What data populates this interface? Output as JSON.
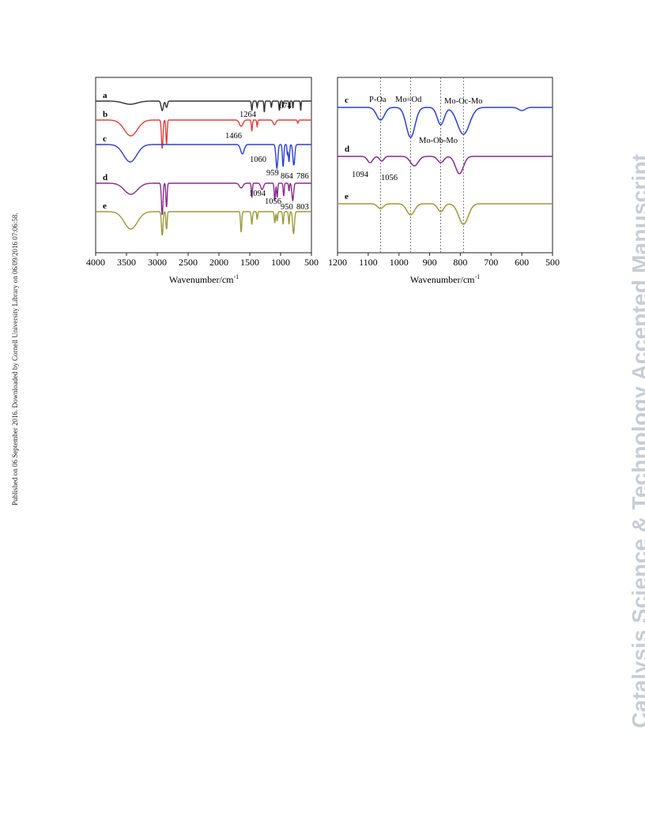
{
  "side_note_left": "Published on 06 September 2016. Downloaded by Cornell University Library on 06/09/2016 07:06:58.",
  "watermark_right": "Catalysis Science & Technology Accepted Manuscript",
  "colors": {
    "a": "#333333",
    "b": "#e0403a",
    "c": "#2b3fd6",
    "d": "#8a2a8f",
    "e": "#9a9a3a"
  },
  "chart_data": [
    {
      "type": "line",
      "xlabel": "Wavenumber/cm",
      "xlabel_superscript": "-1",
      "xlim": [
        4000,
        500
      ],
      "xticks": [
        "4000",
        "3500",
        "3000",
        "2500",
        "2000",
        "1500",
        "1000",
        "500"
      ],
      "series": [
        {
          "name": "a"
        },
        {
          "name": "b"
        },
        {
          "name": "c"
        },
        {
          "name": "d"
        },
        {
          "name": "e"
        }
      ],
      "annotations": [
        {
          "text": "1264",
          "x": 1264,
          "series": "a"
        },
        {
          "text": "674",
          "x": 674,
          "series": "a"
        },
        {
          "text": "1466",
          "x": 1466,
          "series": "b"
        },
        {
          "text": "1060",
          "x": 1060,
          "series": "c"
        },
        {
          "text": "959",
          "x": 959,
          "series": "c"
        },
        {
          "text": "864",
          "x": 864,
          "series": "c"
        },
        {
          "text": "786",
          "x": 786,
          "series": "c"
        },
        {
          "text": "1094",
          "x": 1094,
          "series": "d"
        },
        {
          "text": "1056",
          "x": 1056,
          "series": "d"
        },
        {
          "text": "950",
          "x": 950,
          "series": "d"
        },
        {
          "text": "803",
          "x": 803,
          "series": "d"
        }
      ]
    },
    {
      "type": "line",
      "xlabel": "Wavenumber/cm",
      "xlabel_superscript": "-1",
      "xlim": [
        1200,
        500
      ],
      "xticks": [
        "1200",
        "1100",
        "1000",
        "900",
        "800",
        "700",
        "600",
        "500"
      ],
      "series": [
        {
          "name": "c"
        },
        {
          "name": "d"
        },
        {
          "name": "e"
        }
      ],
      "reference_lines": [
        1060,
        962,
        864,
        790
      ],
      "annotations": [
        {
          "text": "P-Oa",
          "x": 1060
        },
        {
          "text": "Mo=Od",
          "x": 962
        },
        {
          "text": "Mo-Oc-Mo",
          "x": 790
        },
        {
          "text": "Mo-Ob-Mo",
          "x": 864
        },
        {
          "text": "1094",
          "x": 1094,
          "series": "d"
        },
        {
          "text": "1056",
          "x": 1056,
          "series": "d"
        }
      ]
    }
  ]
}
